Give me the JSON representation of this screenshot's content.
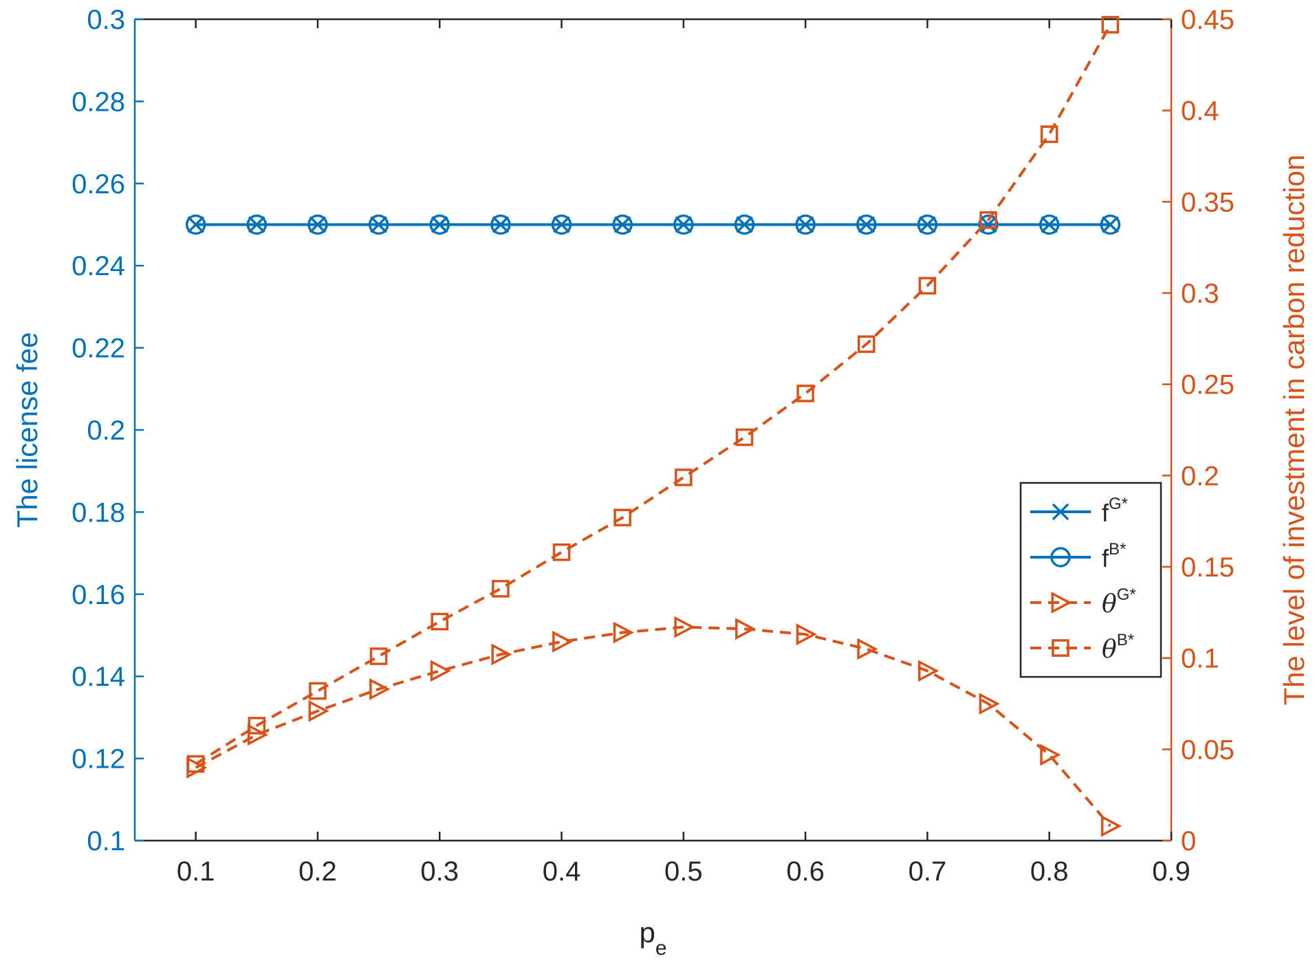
{
  "chart_data": {
    "type": "line",
    "xlabel": {
      "base": "p",
      "sub": "e"
    },
    "ylabel_left": "The license fee",
    "ylabel_right": "The level of investment in carbon reduction",
    "xlim": [
      0.05,
      0.9
    ],
    "ylim_left": [
      0.1,
      0.3
    ],
    "ylim_right": [
      0,
      0.45
    ],
    "x_ticks": [
      0.1,
      0.2,
      0.3,
      0.4,
      0.5,
      0.6,
      0.7,
      0.8,
      0.9
    ],
    "x_tick_labels": [
      "0.1",
      "0.2",
      "0.3",
      "0.4",
      "0.5",
      "0.6",
      "0.7",
      "0.8",
      "0.9"
    ],
    "y_left_ticks": [
      0.1,
      0.12,
      0.14,
      0.16,
      0.18,
      0.2,
      0.22,
      0.24,
      0.26,
      0.28,
      0.3
    ],
    "y_left_tick_labels": [
      "0.1",
      "0.12",
      "0.14",
      "0.16",
      "0.18",
      "0.2",
      "0.22",
      "0.24",
      "0.26",
      "0.28",
      "0.3"
    ],
    "y_right_ticks": [
      0,
      0.05,
      0.1,
      0.15,
      0.2,
      0.25,
      0.3,
      0.35,
      0.4,
      0.45
    ],
    "y_right_tick_labels": [
      "0",
      "0.05",
      "0.1",
      "0.15",
      "0.2",
      "0.25",
      "0.3",
      "0.35",
      "0.4",
      "0.45"
    ],
    "x": [
      0.1,
      0.15,
      0.2,
      0.25,
      0.3,
      0.35,
      0.4,
      0.45,
      0.5,
      0.55,
      0.6,
      0.65,
      0.7,
      0.75,
      0.8,
      0.85
    ],
    "colors": {
      "left": "#0072BD",
      "right": "#D95319"
    },
    "series": [
      {
        "name": "f",
        "sup": "G*",
        "axis": "left",
        "marker": "x",
        "dash": "solid",
        "values": [
          0.25,
          0.25,
          0.25,
          0.25,
          0.25,
          0.25,
          0.25,
          0.25,
          0.25,
          0.25,
          0.25,
          0.25,
          0.25,
          0.25,
          0.25,
          0.25
        ]
      },
      {
        "name": "f",
        "sup": "B*",
        "axis": "left",
        "marker": "circle",
        "dash": "solid",
        "values": [
          0.25,
          0.25,
          0.25,
          0.25,
          0.25,
          0.25,
          0.25,
          0.25,
          0.25,
          0.25,
          0.25,
          0.25,
          0.25,
          0.25,
          0.25,
          0.25
        ]
      },
      {
        "name": "θ",
        "sup": "G*",
        "axis": "right",
        "marker": "triangle-right",
        "dash": "dashed",
        "values": [
          0.04,
          0.058,
          0.071,
          0.083,
          0.093,
          0.102,
          0.109,
          0.114,
          0.117,
          0.116,
          0.113,
          0.105,
          0.093,
          0.075,
          0.047,
          0.008
        ]
      },
      {
        "name": "θ",
        "sup": "B*",
        "axis": "right",
        "marker": "square",
        "dash": "dashed",
        "values": [
          0.042,
          0.063,
          0.082,
          0.101,
          0.12,
          0.138,
          0.158,
          0.177,
          0.199,
          0.221,
          0.245,
          0.272,
          0.304,
          0.34,
          0.387,
          0.447
        ]
      }
    ],
    "legend_position": "center-right",
    "grid": false
  }
}
